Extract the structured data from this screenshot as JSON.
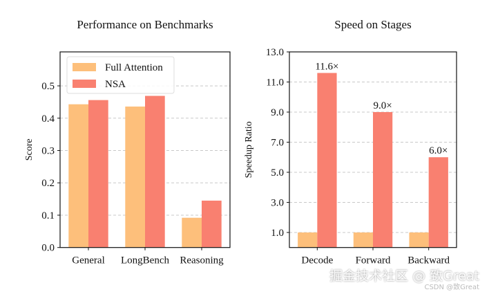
{
  "chart_data": [
    {
      "type": "bar",
      "title": "Performance on Benchmarks",
      "xlabel": "",
      "ylabel": "Score",
      "categories": [
        "General",
        "LongBench",
        "Reasoning"
      ],
      "series": [
        {
          "name": "Full Attention",
          "values": [
            0.443,
            0.436,
            0.092
          ],
          "color": "#FDBF7B"
        },
        {
          "name": "NSA",
          "values": [
            0.456,
            0.469,
            0.145
          ],
          "color": "#F98070"
        }
      ],
      "ylim": [
        0,
        0.605
      ],
      "yticks": [
        "0.0",
        "0.1",
        "0.2",
        "0.3",
        "0.4",
        "0.5"
      ],
      "grid": "horizontal dashed",
      "legend": "top-left"
    },
    {
      "type": "bar",
      "title": "Speed on Stages",
      "xlabel": "",
      "ylabel": "Speedup Ratio",
      "categories": [
        "Decode",
        "Forward",
        "Backward"
      ],
      "series": [
        {
          "values": [
            1.0,
            1.0,
            1.0
          ],
          "color": "#FDBF7B"
        },
        {
          "values": [
            11.6,
            9.0,
            6.0
          ],
          "color": "#F98070"
        }
      ],
      "data_labels": [
        "11.6×",
        "9.0×",
        "6.0×"
      ],
      "ylim": [
        0,
        13
      ],
      "yticks": [
        "1.0",
        "3.0",
        "5.0",
        "7.0",
        "9.0",
        "11.0",
        "13.0"
      ],
      "grid": "horizontal dashed"
    }
  ],
  "watermark": {
    "main": "掘金技术社区 @ 致Great",
    "sub": "CSDN @致Great"
  }
}
